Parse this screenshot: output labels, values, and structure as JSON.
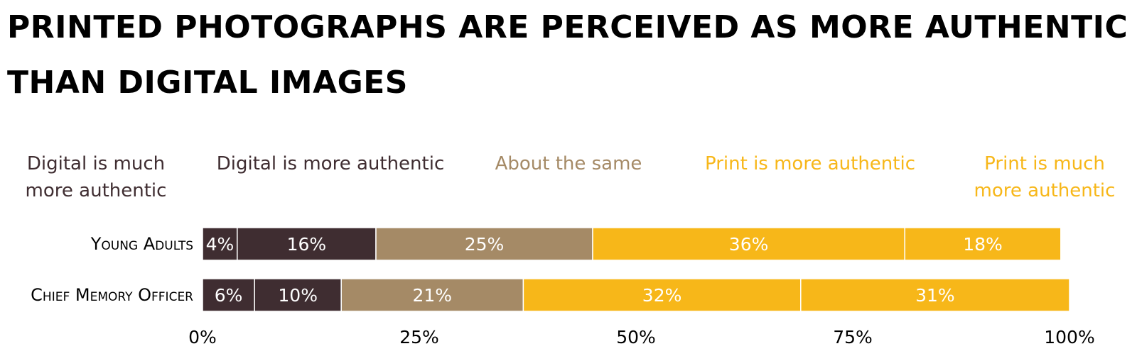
{
  "chart_data": {
    "type": "bar",
    "orientation": "horizontal",
    "stacked": true,
    "title": "PRINTED PHOTOGRAPHS ARE PERCEIVED AS MORE AUTHENTIC THAN DIGITAL IMAGES",
    "categories": [
      "Young Adults",
      "Chief Memory Officer"
    ],
    "series": [
      {
        "name": "Digital is much more authentic",
        "color": "#3f2d31",
        "values": [
          4,
          6
        ],
        "labels": [
          "4%",
          "6%"
        ]
      },
      {
        "name": "Digital is more authentic",
        "color": "#3f2d31",
        "values": [
          16,
          10
        ],
        "labels": [
          "16%",
          "10%"
        ]
      },
      {
        "name": "About the same",
        "color": "#a58a66",
        "values": [
          25,
          21
        ],
        "labels": [
          "25%",
          "21%"
        ]
      },
      {
        "name": "Print is more authentic",
        "color": "#f7b719",
        "values": [
          36,
          32
        ],
        "labels": [
          "36%",
          "32%"
        ]
      },
      {
        "name": "Print is much more authentic",
        "color": "#f7b719",
        "values": [
          18,
          31
        ],
        "labels": [
          "18%",
          "31%"
        ]
      }
    ],
    "x_ticks": [
      "0%",
      "25%",
      "50%",
      "75%",
      "100%"
    ],
    "xlim": [
      0,
      100
    ],
    "grid": false,
    "legend_placement": "top"
  }
}
